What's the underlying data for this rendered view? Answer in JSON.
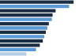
{
  "chart_data": {
    "type": "bar",
    "orientation": "horizontal",
    "categories": [
      null,
      null,
      null,
      null,
      null,
      null,
      null,
      null,
      null,
      null,
      null,
      null,
      null
    ],
    "values": [
      9.8,
      9.2,
      7.4,
      7.0,
      6.9,
      6.5,
      6.3,
      6.1,
      5.9,
      5.7,
      5.3,
      4.8,
      3.5
    ],
    "colors": [
      "#1a2e44",
      "#5b9bd5",
      "#1a2e44",
      "#1a2e44",
      "#5b9bd5",
      "#1a2e44",
      "#5b9bd5",
      "#1a2e44",
      "#5b9bd5",
      "#1a2e44",
      "#1a2e44",
      "#5b9bd5",
      "#b8cce4"
    ],
    "xlim": [
      0,
      10.2
    ],
    "tick_labels": false,
    "grid": false
  }
}
